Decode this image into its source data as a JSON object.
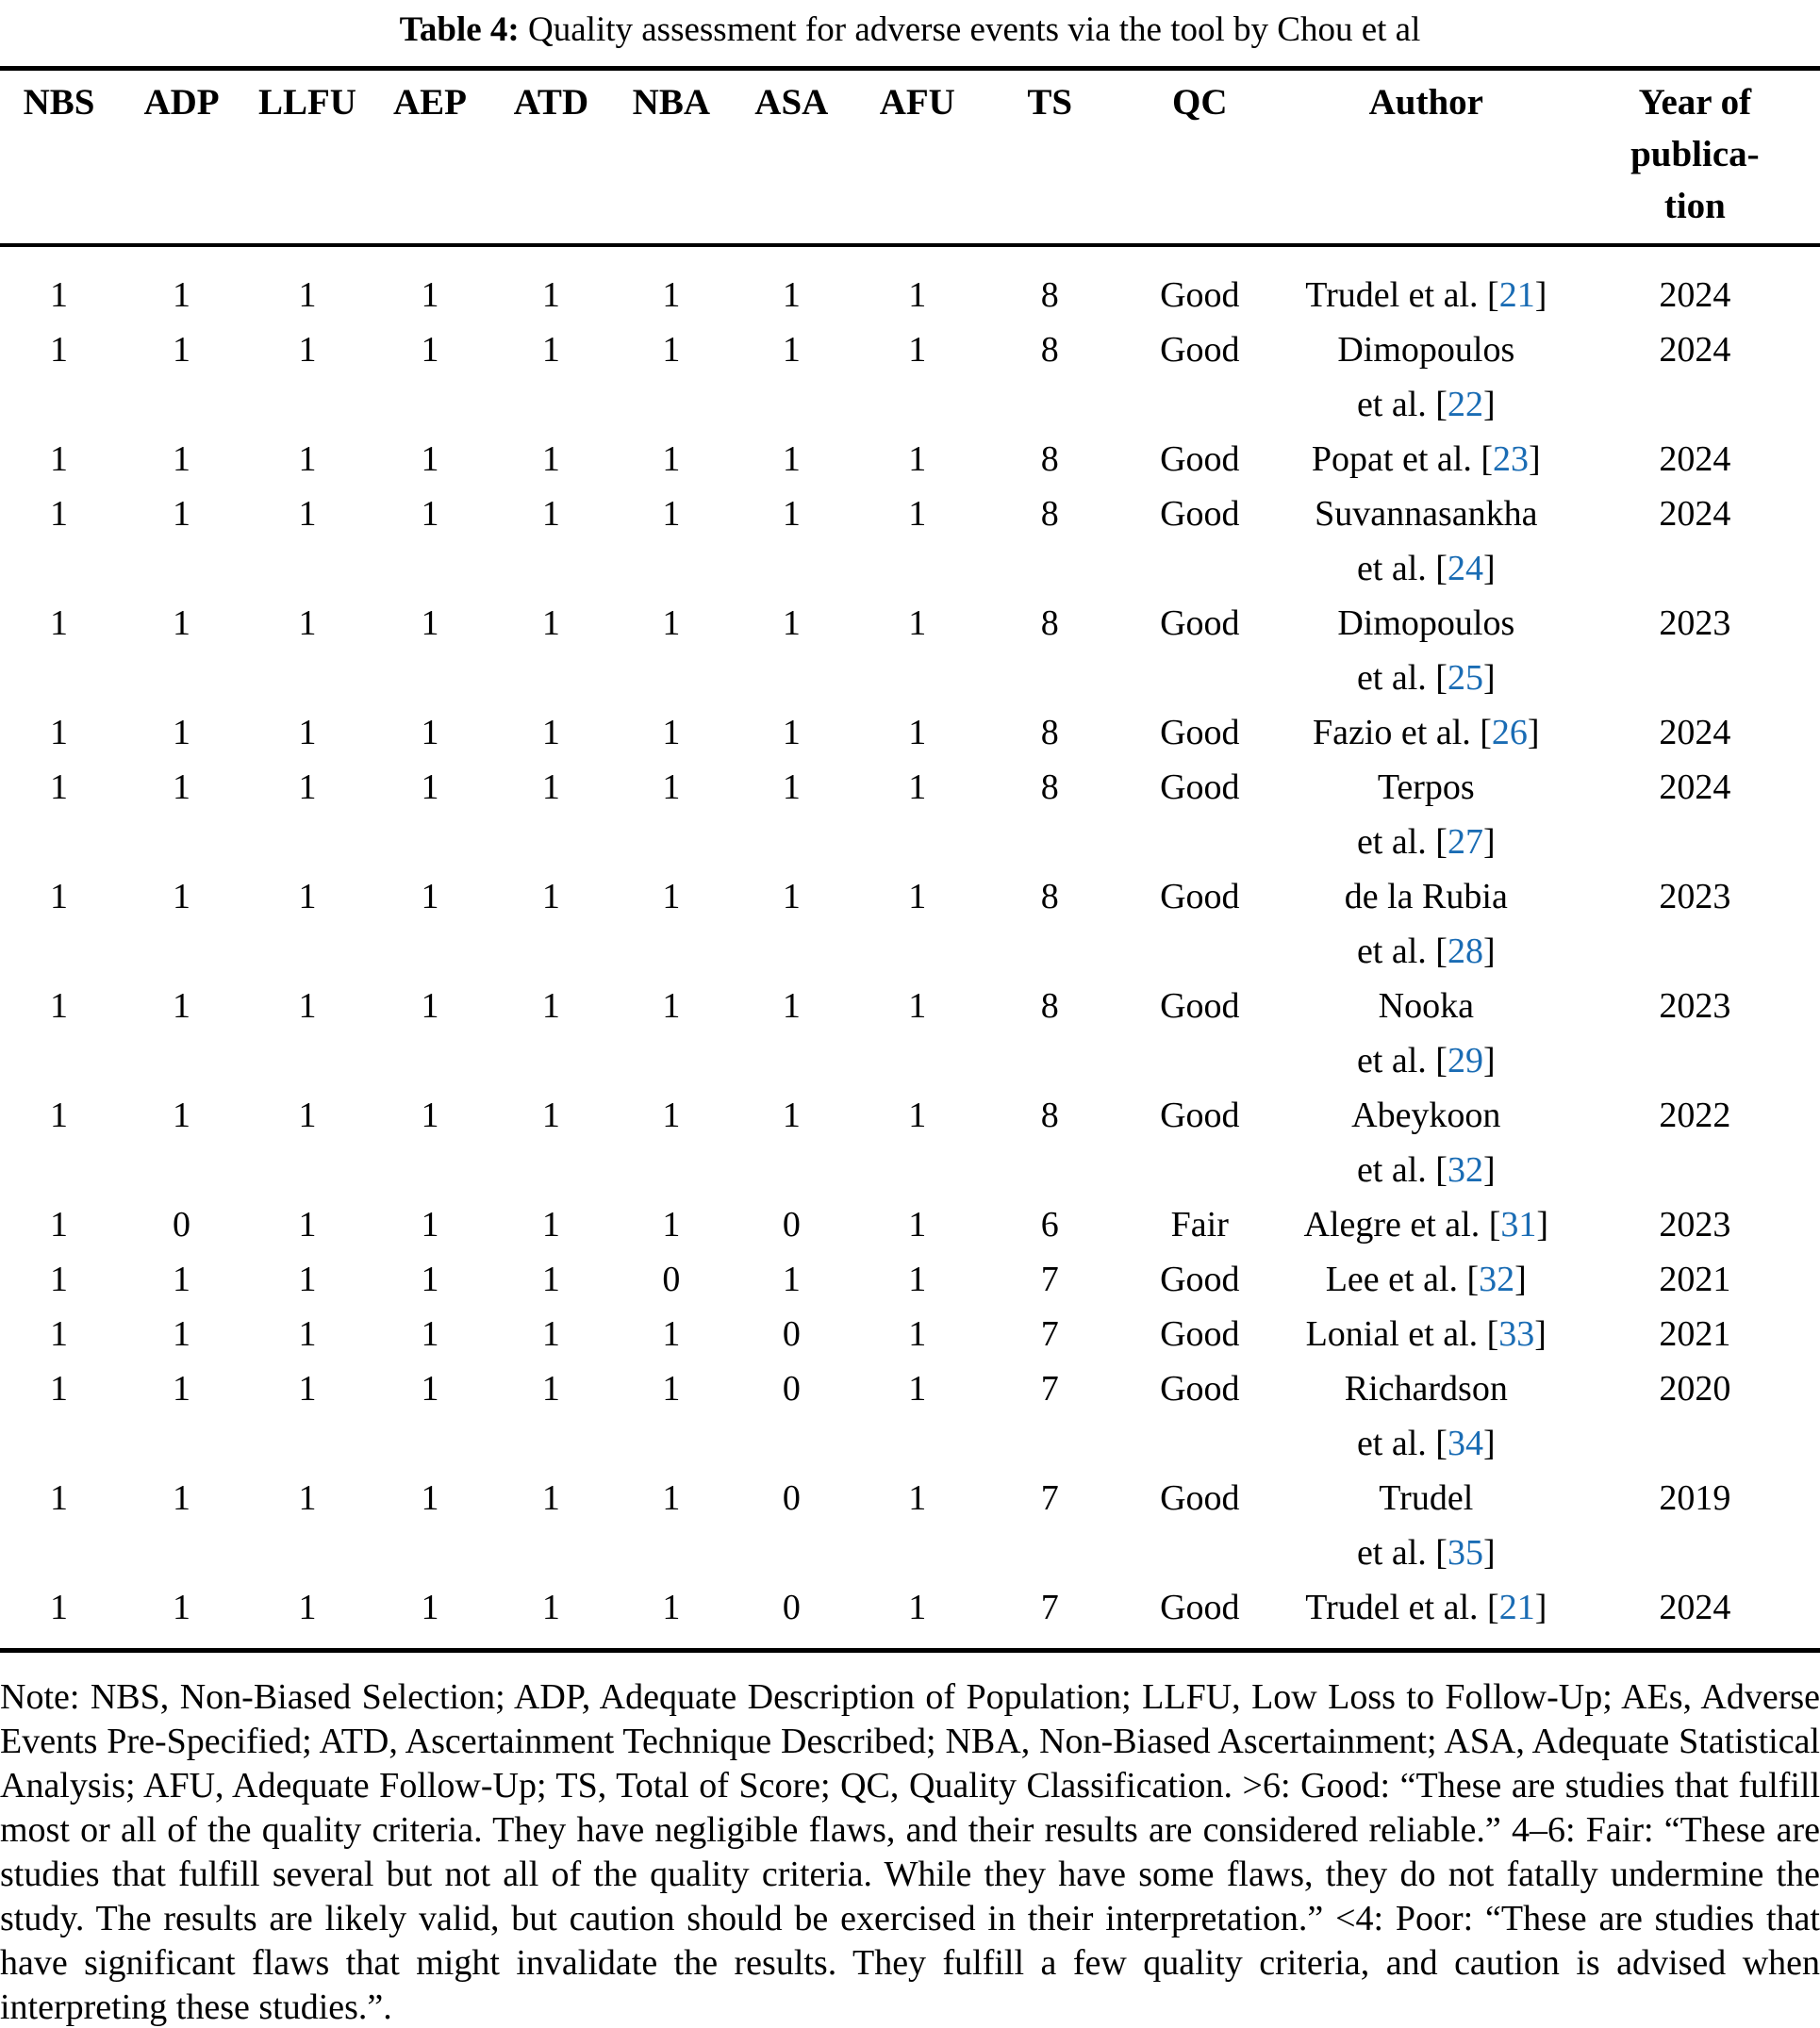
{
  "caption": {
    "label": "Table 4:",
    "text": "Quality assessment for adverse events via the tool by Chou et al"
  },
  "table": {
    "score_headers": [
      "NBS",
      "ADP",
      "LLFU",
      "AEP",
      "ATD",
      "NBA",
      "ASA",
      "AFU"
    ],
    "ts_header": "TS",
    "qc_header": "QC",
    "author_header": "Author",
    "year_header_lines": [
      "Year of",
      "publica-",
      "tion"
    ],
    "rows": [
      {
        "scores": [
          "1",
          "1",
          "1",
          "1",
          "1",
          "1",
          "1",
          "1"
        ],
        "ts": "8",
        "qc": "Good",
        "author_lines": [
          {
            "text": "Trudel et al.",
            "cite": "21"
          }
        ],
        "year": "2024"
      },
      {
        "scores": [
          "1",
          "1",
          "1",
          "1",
          "1",
          "1",
          "1",
          "1"
        ],
        "ts": "8",
        "qc": "Good",
        "author_lines": [
          {
            "text": "Dimopoulos"
          },
          {
            "text": "et al.",
            "cite": "22"
          }
        ],
        "year": "2024"
      },
      {
        "scores": [
          "1",
          "1",
          "1",
          "1",
          "1",
          "1",
          "1",
          "1"
        ],
        "ts": "8",
        "qc": "Good",
        "author_lines": [
          {
            "text": "Popat et al.",
            "cite": "23"
          }
        ],
        "year": "2024"
      },
      {
        "scores": [
          "1",
          "1",
          "1",
          "1",
          "1",
          "1",
          "1",
          "1"
        ],
        "ts": "8",
        "qc": "Good",
        "author_lines": [
          {
            "text": "Suvannasankha"
          },
          {
            "text": "et al.",
            "cite": "24"
          }
        ],
        "year": "2024"
      },
      {
        "scores": [
          "1",
          "1",
          "1",
          "1",
          "1",
          "1",
          "1",
          "1"
        ],
        "ts": "8",
        "qc": "Good",
        "author_lines": [
          {
            "text": "Dimopoulos"
          },
          {
            "text": "et al.",
            "cite": "25"
          }
        ],
        "year": "2023"
      },
      {
        "scores": [
          "1",
          "1",
          "1",
          "1",
          "1",
          "1",
          "1",
          "1"
        ],
        "ts": "8",
        "qc": "Good",
        "author_lines": [
          {
            "text": "Fazio et al.",
            "cite": "26"
          }
        ],
        "year": "2024"
      },
      {
        "scores": [
          "1",
          "1",
          "1",
          "1",
          "1",
          "1",
          "1",
          "1"
        ],
        "ts": "8",
        "qc": "Good",
        "author_lines": [
          {
            "text": "Terpos"
          },
          {
            "text": "et al.",
            "cite": "27"
          }
        ],
        "year": "2024"
      },
      {
        "scores": [
          "1",
          "1",
          "1",
          "1",
          "1",
          "1",
          "1",
          "1"
        ],
        "ts": "8",
        "qc": "Good",
        "author_lines": [
          {
            "text": "de la Rubia"
          },
          {
            "text": "et al.",
            "cite": "28"
          }
        ],
        "year": "2023"
      },
      {
        "scores": [
          "1",
          "1",
          "1",
          "1",
          "1",
          "1",
          "1",
          "1"
        ],
        "ts": "8",
        "qc": "Good",
        "author_lines": [
          {
            "text": "Nooka"
          },
          {
            "text": "et al.",
            "cite": "29"
          }
        ],
        "year": "2023"
      },
      {
        "scores": [
          "1",
          "1",
          "1",
          "1",
          "1",
          "1",
          "1",
          "1"
        ],
        "ts": "8",
        "qc": "Good",
        "author_lines": [
          {
            "text": "Abeykoon"
          },
          {
            "text": "et al.",
            "cite": "32"
          }
        ],
        "year": "2022"
      },
      {
        "scores": [
          "1",
          "0",
          "1",
          "1",
          "1",
          "1",
          "0",
          "1"
        ],
        "ts": "6",
        "qc": "Fair",
        "author_lines": [
          {
            "text": "Alegre et al.",
            "cite": "31"
          }
        ],
        "year": "2023"
      },
      {
        "scores": [
          "1",
          "1",
          "1",
          "1",
          "1",
          "0",
          "1",
          "1"
        ],
        "ts": "7",
        "qc": "Good",
        "author_lines": [
          {
            "text": "Lee et al.",
            "cite": "32"
          }
        ],
        "year": "2021"
      },
      {
        "scores": [
          "1",
          "1",
          "1",
          "1",
          "1",
          "1",
          "0",
          "1"
        ],
        "ts": "7",
        "qc": "Good",
        "author_lines": [
          {
            "text": "Lonial et al.",
            "cite": "33"
          }
        ],
        "year": "2021"
      },
      {
        "scores": [
          "1",
          "1",
          "1",
          "1",
          "1",
          "1",
          "0",
          "1"
        ],
        "ts": "7",
        "qc": "Good",
        "author_lines": [
          {
            "text": "Richardson"
          },
          {
            "text": "et al.",
            "cite": "34"
          }
        ],
        "year": "2020"
      },
      {
        "scores": [
          "1",
          "1",
          "1",
          "1",
          "1",
          "1",
          "0",
          "1"
        ],
        "ts": "7",
        "qc": "Good",
        "author_lines": [
          {
            "text": "Trudel"
          },
          {
            "text": "et al.",
            "cite": "35"
          }
        ],
        "year": "2019"
      },
      {
        "scores": [
          "1",
          "1",
          "1",
          "1",
          "1",
          "1",
          "0",
          "1"
        ],
        "ts": "7",
        "qc": "Good",
        "author_lines": [
          {
            "text": "Trudel et al.",
            "cite": "21"
          }
        ],
        "year": "2024"
      }
    ]
  },
  "note": {
    "text": "Note: NBS, Non-Biased Selection; ADP, Adequate Description of Population; LLFU, Low Loss to Follow-Up; AEs, Adverse Events Pre-Specified; ATD, Ascertainment Technique Described; NBA, Non-Biased Ascertainment; ASA, Adequate Statistical Analysis; AFU, Adequate Follow-Up; TS, Total of Score; QC, Quality Classification. >6: Good: “These are studies that fulfill most or all of the quality criteria. They have negligible flaws, and their results are considered reliable.” 4–6: Fair: “These are studies that fulfill several but not all of the quality criteria. While they have some flaws, they do not fatally undermine the study. The results are likely valid, but caution should be exercised in their interpretation.” <4: Poor: “These are studies that have significant flaws that might invalidate the results. They fulfill a few quality criteria, and caution is advised when interpreting these studies.”."
  },
  "colors": {
    "citation_blue": "#1a6cb4",
    "text_black": "#000000",
    "background": "#ffffff"
  }
}
